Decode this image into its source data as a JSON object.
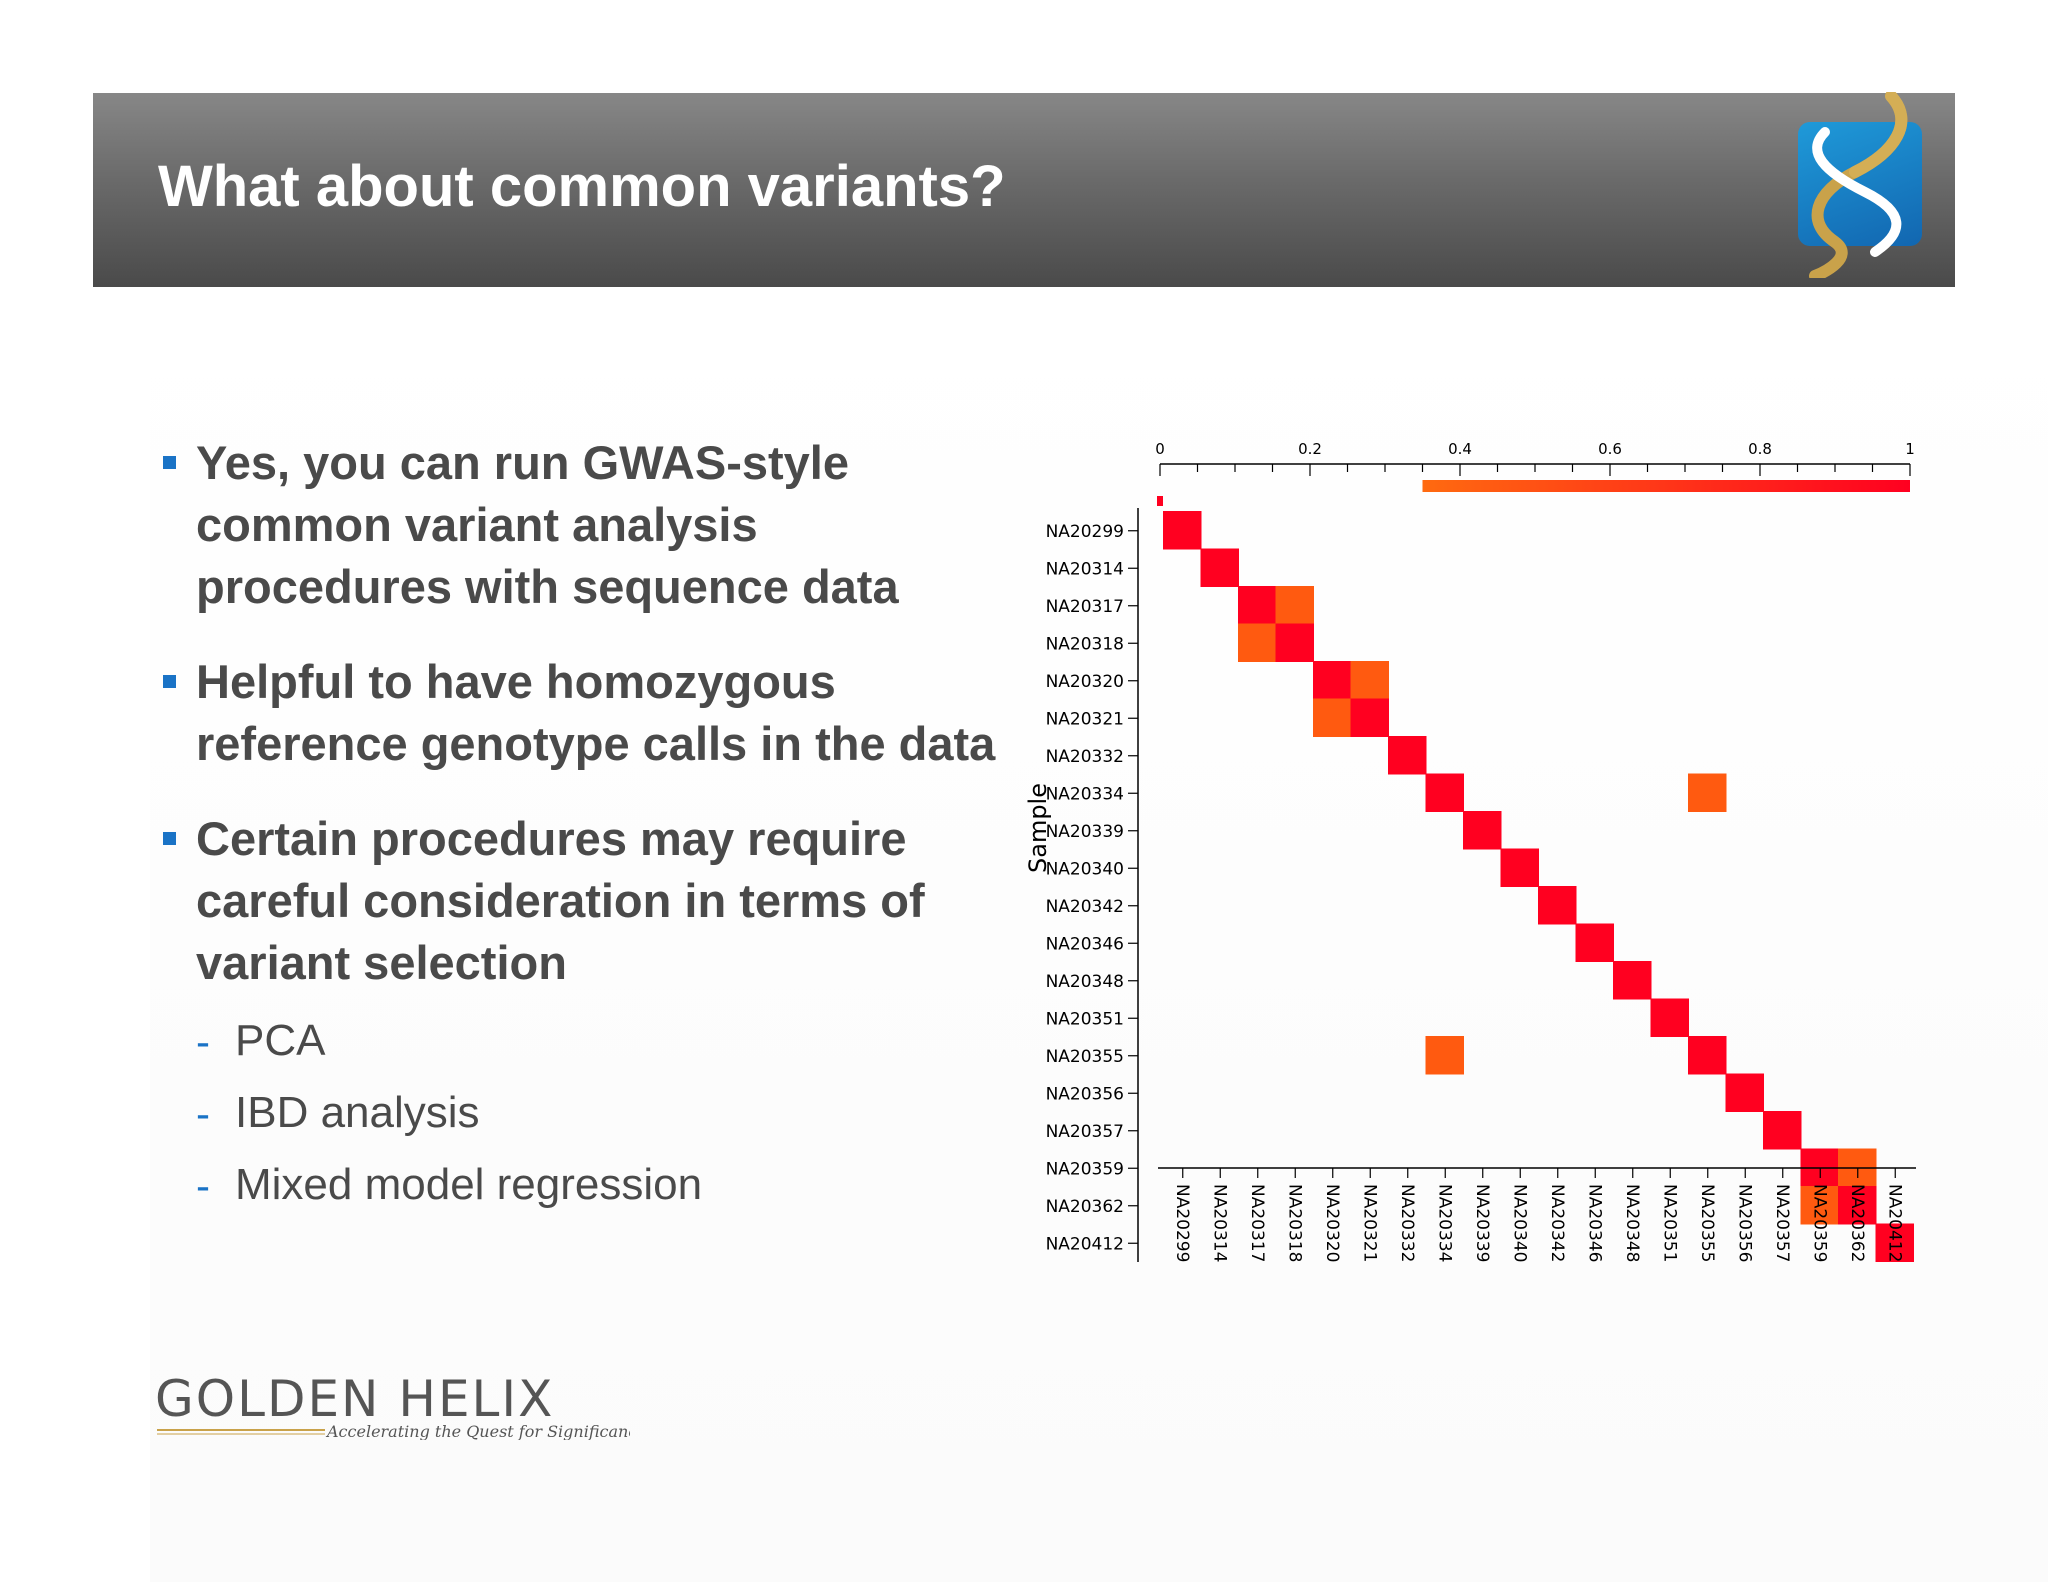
{
  "slide": {
    "title": "What about common variants?",
    "logo_icon": "golden-helix-dna-icon"
  },
  "bullets": [
    {
      "text": "Yes, you can run GWAS-style common variant analysis procedures with sequence data"
    },
    {
      "text": "Helpful to have homozygous reference genotype calls in the data"
    },
    {
      "text": "Certain procedures may require careful consideration in terms of variant selection"
    }
  ],
  "sub_bullets": [
    {
      "text": "PCA"
    },
    {
      "text": "IBD analysis"
    },
    {
      "text": "Mixed model regression"
    }
  ],
  "footer_logo": {
    "name": "GOLDEN HELIX",
    "tagline": "Accelerating the Quest for Significance™"
  },
  "colors": {
    "accent_blue": "#1a73c6",
    "body_text": "#4a4a4a",
    "heat_high": "#ff0020",
    "heat_mid": "#ff5a10"
  },
  "chart_data": {
    "type": "heatmap",
    "ylabel": "Sample",
    "xlabel": "",
    "title": "",
    "samples": [
      "NA20299",
      "NA20314",
      "NA20317",
      "NA20318",
      "NA20320",
      "NA20321",
      "NA20332",
      "NA20334",
      "NA20339",
      "NA20340",
      "NA20342",
      "NA20346",
      "NA20348",
      "NA20351",
      "NA20355",
      "NA20356",
      "NA20357",
      "NA20359",
      "NA20362",
      "NA20412"
    ],
    "cells": [
      {
        "row": "NA20299",
        "col": "NA20299",
        "value": 1.0
      },
      {
        "row": "NA20314",
        "col": "NA20314",
        "value": 1.0
      },
      {
        "row": "NA20317",
        "col": "NA20317",
        "value": 1.0
      },
      {
        "row": "NA20317",
        "col": "NA20318",
        "value": 0.5
      },
      {
        "row": "NA20318",
        "col": "NA20317",
        "value": 0.5
      },
      {
        "row": "NA20318",
        "col": "NA20318",
        "value": 1.0
      },
      {
        "row": "NA20320",
        "col": "NA20320",
        "value": 1.0
      },
      {
        "row": "NA20320",
        "col": "NA20321",
        "value": 0.5
      },
      {
        "row": "NA20321",
        "col": "NA20320",
        "value": 0.5
      },
      {
        "row": "NA20321",
        "col": "NA20321",
        "value": 1.0
      },
      {
        "row": "NA20332",
        "col": "NA20332",
        "value": 1.0
      },
      {
        "row": "NA20334",
        "col": "NA20334",
        "value": 1.0
      },
      {
        "row": "NA20334",
        "col": "NA20355",
        "value": 0.5
      },
      {
        "row": "NA20339",
        "col": "NA20339",
        "value": 1.0
      },
      {
        "row": "NA20340",
        "col": "NA20340",
        "value": 1.0
      },
      {
        "row": "NA20342",
        "col": "NA20342",
        "value": 1.0
      },
      {
        "row": "NA20346",
        "col": "NA20346",
        "value": 1.0
      },
      {
        "row": "NA20348",
        "col": "NA20348",
        "value": 1.0
      },
      {
        "row": "NA20351",
        "col": "NA20351",
        "value": 1.0
      },
      {
        "row": "NA20355",
        "col": "NA20334",
        "value": 0.5
      },
      {
        "row": "NA20355",
        "col": "NA20355",
        "value": 1.0
      },
      {
        "row": "NA20356",
        "col": "NA20356",
        "value": 1.0
      },
      {
        "row": "NA20357",
        "col": "NA20357",
        "value": 1.0
      },
      {
        "row": "NA20359",
        "col": "NA20359",
        "value": 1.0
      },
      {
        "row": "NA20359",
        "col": "NA20362",
        "value": 0.5
      },
      {
        "row": "NA20362",
        "col": "NA20359",
        "value": 0.5
      },
      {
        "row": "NA20362",
        "col": "NA20362",
        "value": 1.0
      },
      {
        "row": "NA20412",
        "col": "NA20412",
        "value": 1.0
      }
    ],
    "colorbar": {
      "range": [
        0,
        1
      ],
      "ticks": [
        "0",
        "0.2",
        "0.4",
        "0.6",
        "0.8",
        "1"
      ],
      "visible_from": 0.35,
      "colors": [
        "#ff6a10",
        "#ff0020"
      ]
    },
    "grid": false,
    "legend": "top"
  }
}
